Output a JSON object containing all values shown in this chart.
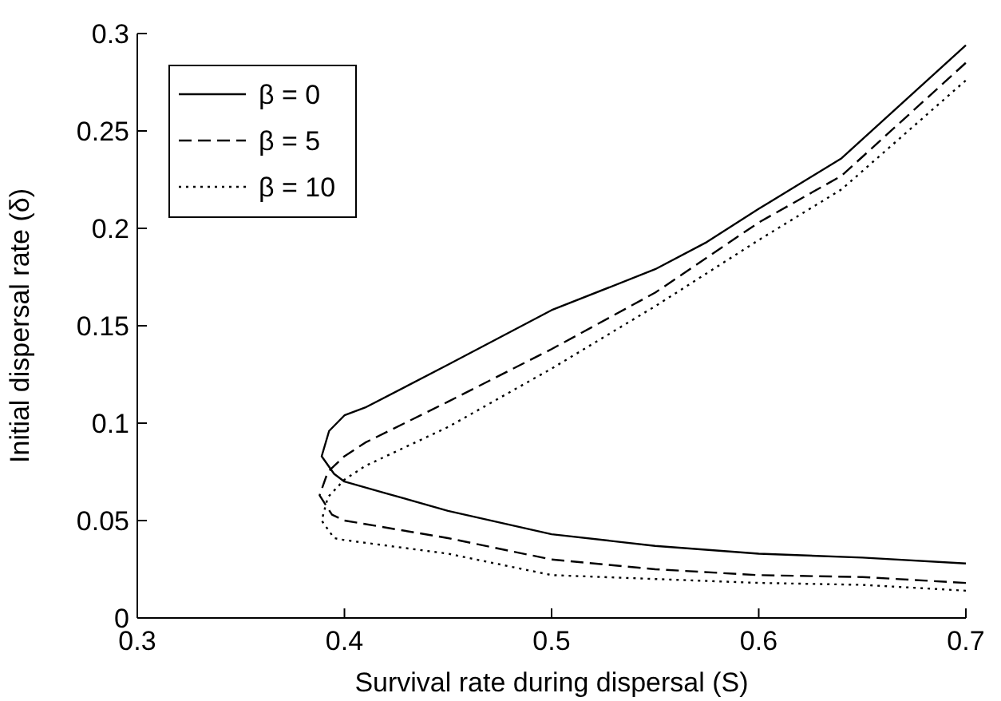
{
  "chart_data": {
    "type": "line",
    "xlabel": "Survival rate during dispersal (S)",
    "ylabel": "Initial dispersal rate (δ)",
    "xlim": [
      0.3,
      0.7
    ],
    "ylim": [
      0,
      0.3
    ],
    "xticks": [
      0.3,
      0.4,
      0.5,
      0.6,
      0.7
    ],
    "yticks": [
      0,
      0.05,
      0.1,
      0.15,
      0.2,
      0.25,
      0.3
    ],
    "grid": false,
    "legend": "top left",
    "series": [
      {
        "name": "β = 0",
        "color": "#000000",
        "line_style": "solid",
        "x": [
          0.7,
          0.65,
          0.6,
          0.55,
          0.5,
          0.45,
          0.42,
          0.4,
          0.395,
          0.389,
          0.3926,
          0.4,
          0.41,
          0.45,
          0.5,
          0.55,
          0.575,
          0.6,
          0.64,
          0.67,
          0.7
        ],
        "values": [
          0.028,
          0.031,
          0.033,
          0.037,
          0.043,
          0.055,
          0.064,
          0.07,
          0.074,
          0.083,
          0.096,
          0.104,
          0.108,
          0.13,
          0.158,
          0.179,
          0.193,
          0.21,
          0.236,
          0.265,
          0.294
        ]
      },
      {
        "name": "β = 5",
        "color": "#000000",
        "line_style": "dashed",
        "x": [
          0.7,
          0.65,
          0.6,
          0.55,
          0.5,
          0.45,
          0.4,
          0.394,
          0.388,
          0.392,
          0.4,
          0.41,
          0.45,
          0.5,
          0.55,
          0.6,
          0.64,
          0.7
        ],
        "values": [
          0.018,
          0.021,
          0.022,
          0.025,
          0.03,
          0.041,
          0.05,
          0.053,
          0.063,
          0.075,
          0.083,
          0.09,
          0.111,
          0.138,
          0.167,
          0.203,
          0.227,
          0.285
        ]
      },
      {
        "name": "β = 10",
        "color": "#000000",
        "line_style": "dotted",
        "x": [
          0.7,
          0.65,
          0.6,
          0.55,
          0.5,
          0.45,
          0.4,
          0.395,
          0.389,
          0.392,
          0.4,
          0.41,
          0.45,
          0.5,
          0.55,
          0.6,
          0.64,
          0.7
        ],
        "values": [
          0.014,
          0.017,
          0.018,
          0.02,
          0.022,
          0.033,
          0.04,
          0.041,
          0.05,
          0.062,
          0.071,
          0.078,
          0.098,
          0.128,
          0.16,
          0.194,
          0.22,
          0.276
        ]
      }
    ]
  }
}
